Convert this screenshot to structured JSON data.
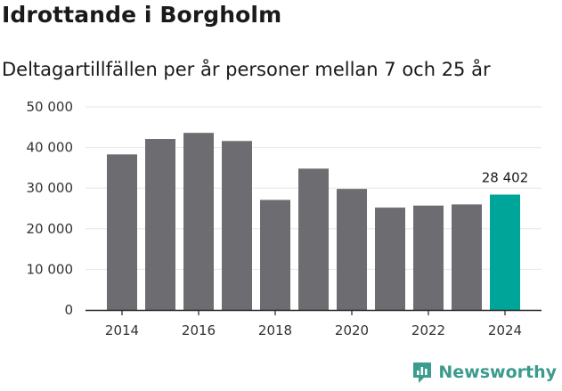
{
  "header": {
    "title": "Idrottande i Borgholm",
    "subtitle": "Deltagartillfällen per år personer mellan 7 och 25 år"
  },
  "brand": {
    "name": "Newsworthy",
    "icon": "bar-chart-logo-icon"
  },
  "colors": {
    "bar": "#6d6c71",
    "highlight": "#00a59a",
    "grid": "#e6e6e6",
    "axis": "#222222",
    "brand": "#3b9b8c"
  },
  "chart_data": {
    "type": "bar",
    "categories": [
      "2014",
      "2015",
      "2016",
      "2017",
      "2018",
      "2019",
      "2020",
      "2021",
      "2022",
      "2023",
      "2024"
    ],
    "values": [
      38300,
      42100,
      43600,
      41600,
      27100,
      34800,
      29800,
      25200,
      25700,
      26000,
      28402
    ],
    "highlight_index": 10,
    "data_labels": [
      {
        "index": 10,
        "text": "28 402"
      }
    ],
    "y_ticks": [
      {
        "value": 0,
        "label": "0"
      },
      {
        "value": 10000,
        "label": "10 000"
      },
      {
        "value": 20000,
        "label": "20 000"
      },
      {
        "value": 30000,
        "label": "30 000"
      },
      {
        "value": 40000,
        "label": "40 000"
      },
      {
        "value": 50000,
        "label": "50 000"
      }
    ],
    "x_tick_labels": [
      {
        "category": "2014",
        "label": "2014"
      },
      {
        "category": "2016",
        "label": "2016"
      },
      {
        "category": "2018",
        "label": "2018"
      },
      {
        "category": "2020",
        "label": "2020"
      },
      {
        "category": "2022",
        "label": "2022"
      },
      {
        "category": "2024",
        "label": "2024"
      }
    ],
    "ylim": [
      0,
      50000
    ],
    "grid": true,
    "xlabel": "",
    "ylabel": ""
  }
}
